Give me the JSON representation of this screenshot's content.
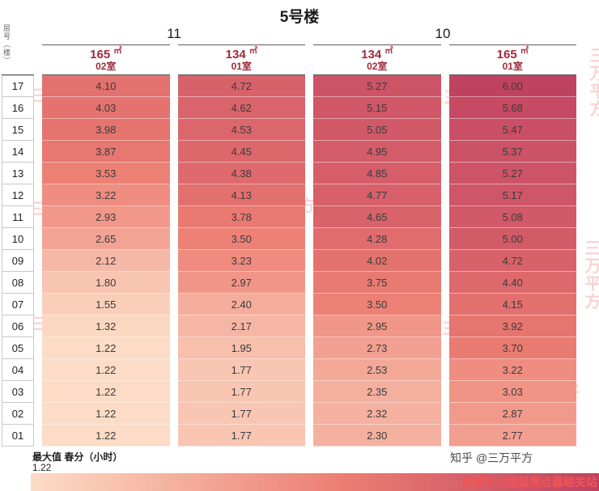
{
  "title": "5号楼",
  "axis_label": "层号（楼）",
  "groups": [
    {
      "label": "11"
    },
    {
      "label": "10"
    }
  ],
  "columns": [
    {
      "group": "11",
      "area": "165",
      "area_unit": "㎡",
      "room": "02室"
    },
    {
      "group": "11",
      "area": "134",
      "area_unit": "㎡",
      "room": "01室"
    },
    {
      "group": "10",
      "area": "134",
      "area_unit": "㎡",
      "room": "02室"
    },
    {
      "group": "10",
      "area": "165",
      "area_unit": "㎡",
      "room": "01室"
    }
  ],
  "chart_data": {
    "type": "heatmap",
    "title": "5号楼",
    "row_axis_label": "层号（楼）",
    "value_label": "最大值 春分（小时）",
    "rows": [
      "17",
      "16",
      "15",
      "14",
      "13",
      "12",
      "11",
      "10",
      "09",
      "08",
      "07",
      "06",
      "05",
      "04",
      "03",
      "02",
      "01"
    ],
    "columns": [
      "11 165㎡ 02室",
      "11 134㎡ 01室",
      "10 134㎡ 02室",
      "10 165㎡ 01室"
    ],
    "values": [
      [
        4.1,
        4.72,
        5.27,
        6.0
      ],
      [
        4.03,
        4.62,
        5.15,
        5.68
      ],
      [
        3.98,
        4.53,
        5.05,
        5.47
      ],
      [
        3.87,
        4.45,
        4.95,
        5.37
      ],
      [
        3.53,
        4.38,
        4.85,
        5.27
      ],
      [
        3.22,
        4.13,
        4.77,
        5.17
      ],
      [
        2.93,
        3.78,
        4.65,
        5.08
      ],
      [
        2.65,
        3.5,
        4.28,
        5.0
      ],
      [
        2.12,
        3.23,
        4.02,
        4.72
      ],
      [
        1.8,
        2.97,
        3.75,
        4.4
      ],
      [
        1.55,
        2.4,
        3.5,
        4.15
      ],
      [
        1.32,
        2.17,
        2.95,
        3.92
      ],
      [
        1.22,
        1.95,
        2.73,
        3.7
      ],
      [
        1.22,
        1.77,
        2.53,
        3.22
      ],
      [
        1.22,
        1.77,
        2.35,
        3.03
      ],
      [
        1.22,
        1.77,
        2.32,
        2.87
      ],
      [
        1.22,
        1.77,
        2.3,
        2.77
      ]
    ],
    "colorscale": {
      "min": 1.22,
      "max": 6.0,
      "stops": [
        "#fcdcc6",
        "#ec7d72",
        "#c04261"
      ]
    }
  },
  "legend": {
    "title": "最大值 春分（小时）",
    "min_label": "1.22"
  },
  "watermark": {
    "text": "三万平方",
    "color": "#f19090"
  },
  "credits": {
    "zhihu": "知乎 @三万平方",
    "sohu": "搜狐号@搜狐焦点嘉峪关站"
  },
  "colors": {
    "header_text": "#a12a3c",
    "cell_text": "#3b3b3b"
  }
}
